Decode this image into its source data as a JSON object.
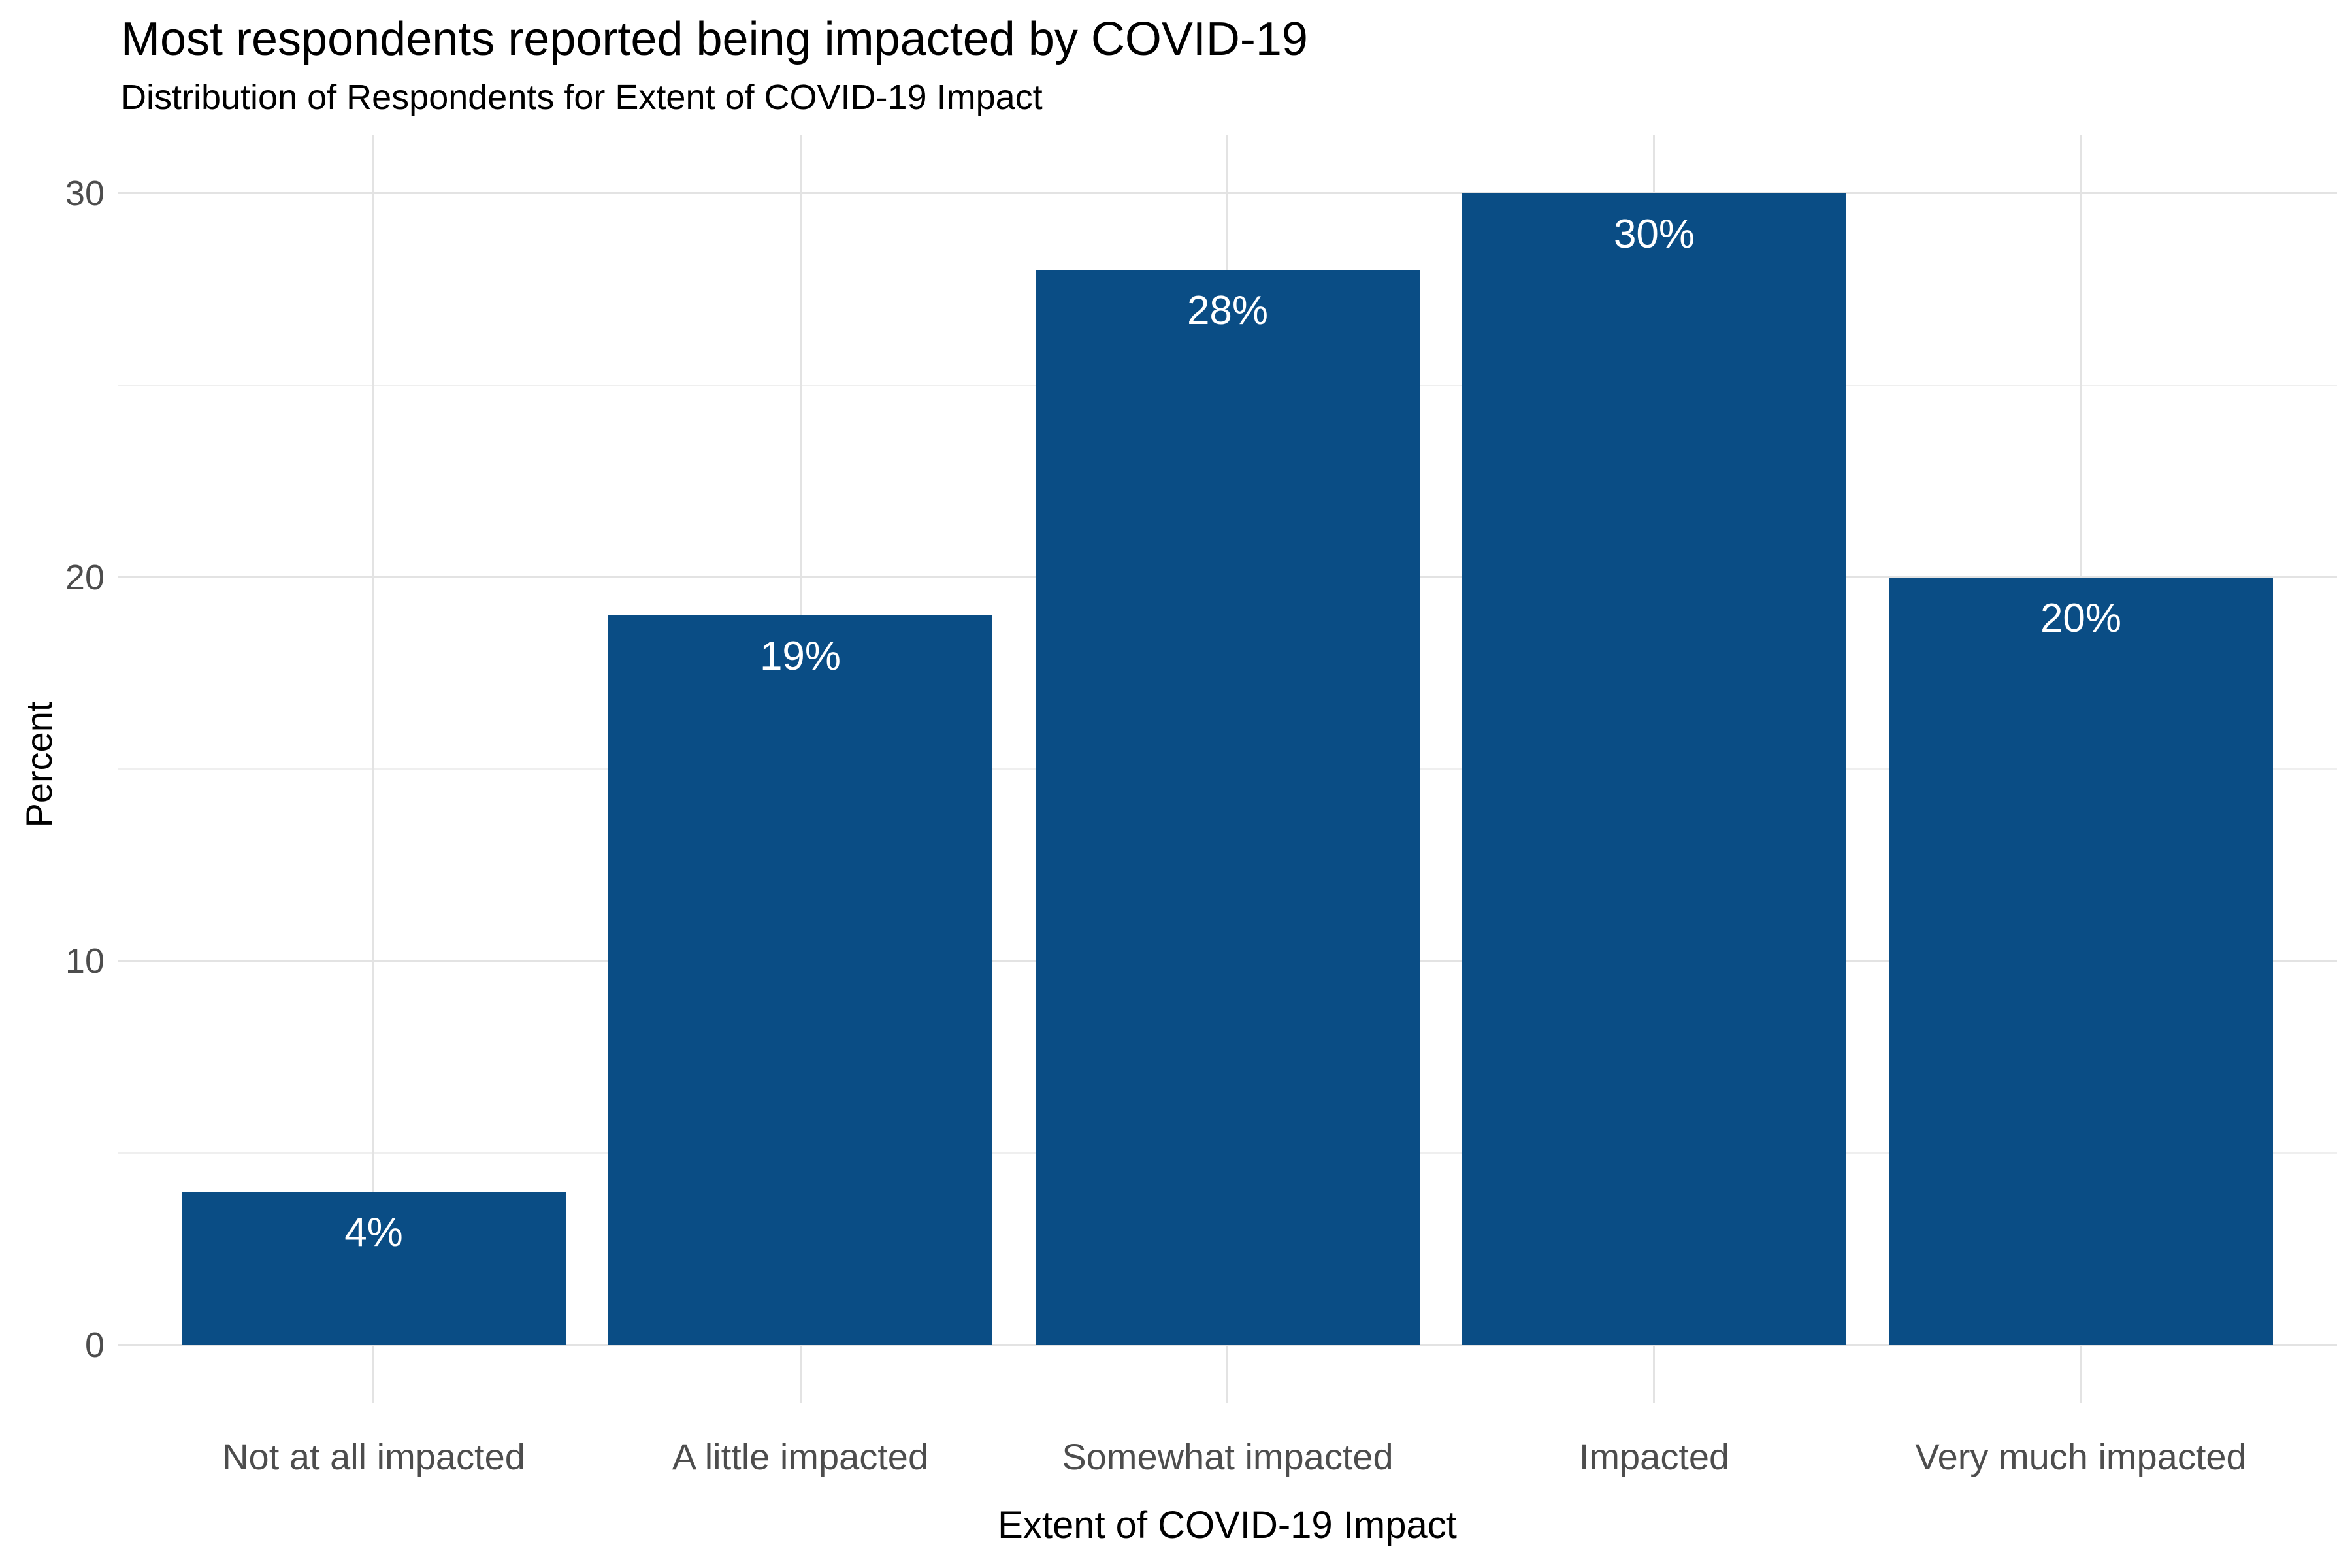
{
  "chart_data": {
    "type": "bar",
    "title": "Most respondents reported being impacted by COVID-19",
    "subtitle": "Distribution of Respondents for Extent of COVID-19 Impact",
    "xlabel": "Extent of COVID-19 Impact",
    "ylabel": "Percent",
    "categories": [
      "Not at all impacted",
      "A little impacted",
      "Somewhat impacted",
      "Impacted",
      "Very much impacted"
    ],
    "values": [
      4,
      19,
      28,
      30,
      20
    ],
    "bar_labels": [
      "4%",
      "19%",
      "28%",
      "30%",
      "20%"
    ],
    "y_ticks": [
      0,
      10,
      20,
      30
    ],
    "y_minor_ticks": [
      5,
      15,
      25
    ],
    "ylim": [
      0,
      31.5
    ],
    "grid": "horizontal major+minor, vertical at category centers",
    "legend": "none",
    "colors": {
      "bar": "#0A4D85",
      "bar_label_text": "#ffffff",
      "axis_text": "#4d4d4d",
      "title_text": "#000000",
      "grid_major": "#e3e3e3",
      "grid_minor": "#efefef"
    }
  }
}
